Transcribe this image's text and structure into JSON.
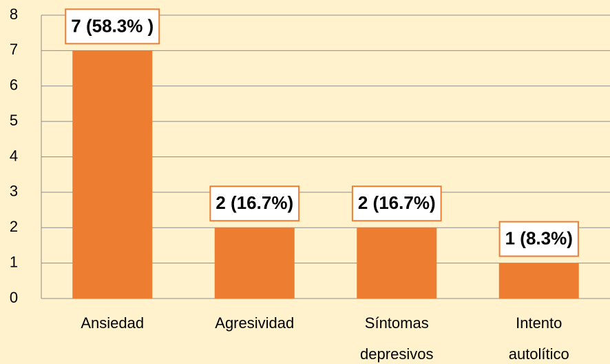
{
  "chart_data": {
    "type": "bar",
    "categories": [
      "Ansiedad",
      "Agresividad",
      "Síntomas depresivos",
      "Intento autolítico"
    ],
    "values": [
      7,
      2,
      2,
      1
    ],
    "value_labels": [
      "7 (58.3% )",
      "2 (16.7%)",
      "2 (16.7%)",
      "1 (8.3%)"
    ],
    "color": "#ed7d31",
    "ylim": [
      0,
      8
    ],
    "yticks": [
      0,
      1,
      2,
      3,
      4,
      5,
      6,
      7,
      8
    ],
    "grid": true
  }
}
